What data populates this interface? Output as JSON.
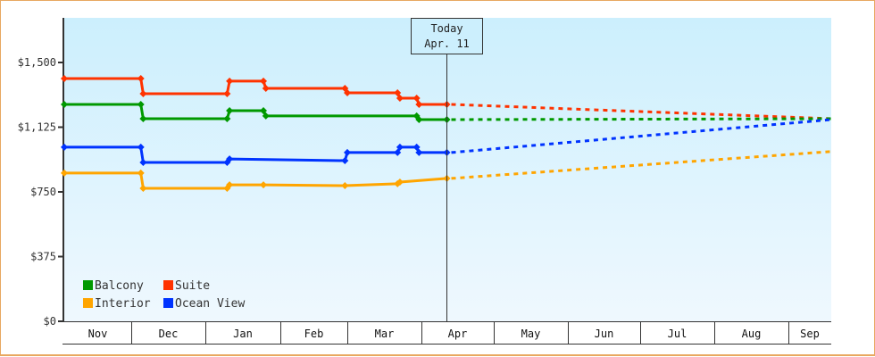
{
  "chart_data": {
    "type": "line",
    "title": "",
    "xlabel": "",
    "ylabel": "",
    "ylim": [
      0,
      1750
    ],
    "y_ticks": [
      "$0",
      "$375",
      "$750",
      "$1,125",
      "$1,500"
    ],
    "y_tick_values": [
      0,
      375,
      750,
      1125,
      1500
    ],
    "categories": [
      "Nov",
      "Dec",
      "Jan",
      "Feb",
      "Mar",
      "Apr",
      "May",
      "Jun",
      "Jul",
      "Aug",
      "Sep"
    ],
    "today_marker": {
      "line1": "Today",
      "line2": "Apr. 11"
    },
    "legend": [
      "Balcony",
      "Suite",
      "Interior",
      "Ocean View"
    ],
    "legend_position": "bottom-left inside plot",
    "grid": false,
    "series": [
      {
        "name": "Suite",
        "color": "#FF3300",
        "historical": [
          {
            "date": "Nov 1",
            "value": 1407
          },
          {
            "date": "Dec 5",
            "value": 1407
          },
          {
            "date": "Dec 6",
            "value": 1319
          },
          {
            "date": "Jan 10",
            "value": 1319
          },
          {
            "date": "Jan 11",
            "value": 1392
          },
          {
            "date": "Jan 25",
            "value": 1392
          },
          {
            "date": "Jan 26",
            "value": 1350
          },
          {
            "date": "Feb 28",
            "value": 1350
          },
          {
            "date": "Mar 1",
            "value": 1324
          },
          {
            "date": "Mar 22",
            "value": 1324
          },
          {
            "date": "Mar 23",
            "value": 1293
          },
          {
            "date": "Mar 30",
            "value": 1293
          },
          {
            "date": "Mar 31",
            "value": 1257
          },
          {
            "date": "Apr 11",
            "value": 1257
          }
        ],
        "forecast": [
          {
            "date": "Apr 11",
            "value": 1257
          },
          {
            "date": "Sep 15",
            "value": 1174
          }
        ]
      },
      {
        "name": "Balcony",
        "color": "#009900",
        "historical": [
          {
            "date": "Nov 1",
            "value": 1257
          },
          {
            "date": "Dec 5",
            "value": 1257
          },
          {
            "date": "Dec 6",
            "value": 1174
          },
          {
            "date": "Jan 10",
            "value": 1174
          },
          {
            "date": "Jan 11",
            "value": 1221
          },
          {
            "date": "Jan 25",
            "value": 1221
          },
          {
            "date": "Jan 26",
            "value": 1190
          },
          {
            "date": "Mar 30",
            "value": 1190
          },
          {
            "date": "Mar 31",
            "value": 1169
          },
          {
            "date": "Apr 11",
            "value": 1169
          }
        ],
        "forecast": [
          {
            "date": "Apr 11",
            "value": 1169
          },
          {
            "date": "Sep 15",
            "value": 1174
          }
        ]
      },
      {
        "name": "Ocean View",
        "color": "#0033FF",
        "historical": [
          {
            "date": "Nov 1",
            "value": 1009
          },
          {
            "date": "Dec 5",
            "value": 1009
          },
          {
            "date": "Dec 6",
            "value": 921
          },
          {
            "date": "Jan 10",
            "value": 921
          },
          {
            "date": "Jan 11",
            "value": 941
          },
          {
            "date": "Feb 28",
            "value": 931
          },
          {
            "date": "Mar 1",
            "value": 978
          },
          {
            "date": "Mar 22",
            "value": 978
          },
          {
            "date": "Mar 23",
            "value": 1009
          },
          {
            "date": "Mar 30",
            "value": 1009
          },
          {
            "date": "Mar 31",
            "value": 978
          },
          {
            "date": "Apr 11",
            "value": 978
          }
        ],
        "forecast": [
          {
            "date": "Apr 11",
            "value": 978
          },
          {
            "date": "Sep 15",
            "value": 1169
          }
        ]
      },
      {
        "name": "Interior",
        "color": "#FFA500",
        "historical": [
          {
            "date": "Nov 1",
            "value": 859
          },
          {
            "date": "Dec 5",
            "value": 859
          },
          {
            "date": "Dec 6",
            "value": 771
          },
          {
            "date": "Jan 10",
            "value": 771
          },
          {
            "date": "Jan 11",
            "value": 791
          },
          {
            "date": "Jan 25",
            "value": 791
          },
          {
            "date": "Feb 28",
            "value": 786
          },
          {
            "date": "Mar 22",
            "value": 797
          },
          {
            "date": "Mar 23",
            "value": 807
          },
          {
            "date": "Apr 11",
            "value": 828
          }
        ],
        "forecast": [
          {
            "date": "Apr 11",
            "value": 828
          },
          {
            "date": "Sep 15",
            "value": 984
          }
        ]
      }
    ]
  },
  "colors": {
    "frame_border": "#E8A860",
    "plot_bg_top": "#CCEEFC",
    "plot_bg_bottom": "#EEF8FE",
    "axis": "#333333"
  }
}
